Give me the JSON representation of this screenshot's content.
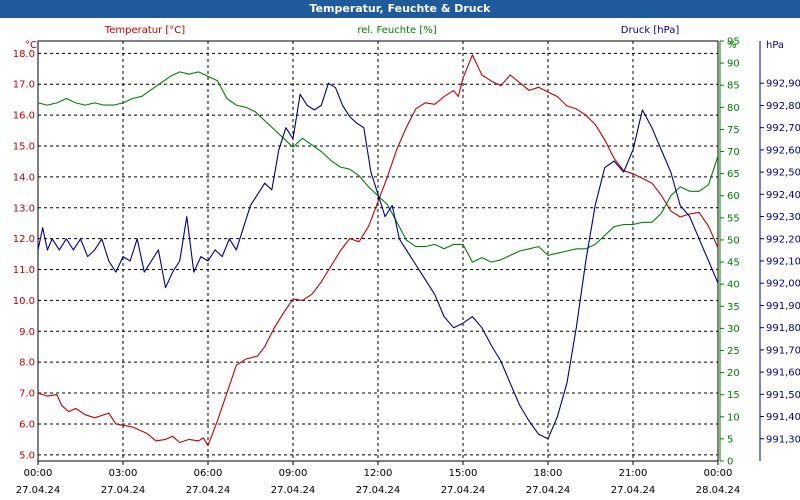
{
  "window": {
    "title": "Temperatur, Feuchte & Druck"
  },
  "chart_data": {
    "type": "line",
    "title": "Temperatur, Feuchte & Druck",
    "grid": true,
    "x_ticks": [
      {
        "time": "00:00",
        "date": "27.04.24"
      },
      {
        "time": "03:00",
        "date": "27.04.24"
      },
      {
        "time": "06:00",
        "date": "27.04.24"
      },
      {
        "time": "09:00",
        "date": "27.04.24"
      },
      {
        "time": "12:00",
        "date": "27.04.24"
      },
      {
        "time": "15:00",
        "date": "27.04.24"
      },
      {
        "time": "18:00",
        "date": "27.04.24"
      },
      {
        "time": "21:00",
        "date": "27.04.24"
      },
      {
        "time": "00:00",
        "date": "28.04.24"
      }
    ],
    "x_range": [
      "27.04.24 00:00",
      "28.04.24 00:00"
    ],
    "axes": {
      "temperature": {
        "label": "Temperatur [°C]",
        "unit": "°C",
        "range": [
          4.8,
          18.4
        ],
        "color": "#c00000",
        "ticks": [
          "5.0",
          "6.0",
          "7.0",
          "8.0",
          "9.0",
          "10.0",
          "11.0",
          "12.0",
          "13.0",
          "14.0",
          "15.0",
          "16.0",
          "17.0",
          "18.0"
        ]
      },
      "humidity": {
        "label": "rel. Feuchte [%]",
        "unit": "%",
        "range": [
          0,
          95
        ],
        "color": "#008000",
        "ticks": [
          "0",
          "5",
          "10",
          "15",
          "20",
          "25",
          "30",
          "35",
          "40",
          "45",
          "50",
          "55",
          "60",
          "65",
          "70",
          "75",
          "80",
          "85",
          "90",
          "95"
        ]
      },
      "pressure": {
        "label": "Druck [hPa]",
        "unit": "hPa",
        "range": [
          991.2,
          993.09
        ],
        "color": "#00008b",
        "ticks": [
          "991,30",
          "991,40",
          "991,50",
          "991,60",
          "991,70",
          "991,80",
          "991,90",
          "992,00",
          "992,10",
          "992,20",
          "992,30",
          "992,40",
          "992,50",
          "992,60",
          "992,70",
          "992,80",
          "992,90"
        ]
      }
    },
    "series": [
      {
        "name": "Temperatur [°C]",
        "axis": "temperature",
        "color": "#c00000",
        "points": [
          [
            "27.04.24 00:00",
            7.0
          ],
          [
            "27.04.24 00:20",
            6.9
          ],
          [
            "27.04.24 00:40",
            6.95
          ],
          [
            "27.04.24 00:50",
            6.6
          ],
          [
            "27.04.24 01:05",
            6.4
          ],
          [
            "27.04.24 01:20",
            6.5
          ],
          [
            "27.04.24 01:40",
            6.3
          ],
          [
            "27.04.24 02:00",
            6.2
          ],
          [
            "27.04.24 02:30",
            6.35
          ],
          [
            "27.04.24 02:45",
            6.0
          ],
          [
            "27.04.24 03:20",
            5.9
          ],
          [
            "27.04.24 03:50",
            5.7
          ],
          [
            "27.04.24 04:10",
            5.45
          ],
          [
            "27.04.24 04:30",
            5.5
          ],
          [
            "27.04.24 04:45",
            5.6
          ],
          [
            "27.04.24 05:00",
            5.4
          ],
          [
            "27.04.24 05:20",
            5.5
          ],
          [
            "27.04.24 05:40",
            5.45
          ],
          [
            "27.04.24 05:50",
            5.55
          ],
          [
            "27.04.24 06:00",
            5.3
          ],
          [
            "27.04.24 06:20",
            6.1
          ],
          [
            "27.04.24 06:40",
            7.0
          ],
          [
            "27.04.24 07:00",
            7.9
          ],
          [
            "27.04.24 07:20",
            8.1
          ],
          [
            "27.04.24 07:45",
            8.2
          ],
          [
            "27.04.24 08:00",
            8.5
          ],
          [
            "27.04.24 08:20",
            9.1
          ],
          [
            "27.04.24 08:40",
            9.6
          ],
          [
            "27.04.24 09:00",
            10.05
          ],
          [
            "27.04.24 09:20",
            10.0
          ],
          [
            "27.04.24 09:40",
            10.2
          ],
          [
            "27.04.24 10:00",
            10.6
          ],
          [
            "27.04.24 10:20",
            11.1
          ],
          [
            "27.04.24 10:40",
            11.6
          ],
          [
            "27.04.24 11:00",
            12.0
          ],
          [
            "27.04.24 11:20",
            11.9
          ],
          [
            "27.04.24 11:40",
            12.4
          ],
          [
            "27.04.24 12:00",
            13.2
          ],
          [
            "27.04.24 12:20",
            14.0
          ],
          [
            "27.04.24 12:40",
            14.9
          ],
          [
            "27.04.24 13:00",
            15.6
          ],
          [
            "27.04.24 13:20",
            16.2
          ],
          [
            "27.04.24 13:40",
            16.4
          ],
          [
            "27.04.24 14:00",
            16.35
          ],
          [
            "27.04.24 14:20",
            16.6
          ],
          [
            "27.04.24 14:40",
            16.8
          ],
          [
            "27.04.24 14:50",
            16.6
          ],
          [
            "27.04.24 15:00",
            17.2
          ],
          [
            "27.04.24 15:20",
            17.95
          ],
          [
            "27.04.24 15:40",
            17.3
          ],
          [
            "27.04.24 16:00",
            17.1
          ],
          [
            "27.04.24 16:20",
            16.95
          ],
          [
            "27.04.24 16:40",
            17.3
          ],
          [
            "27.04.24 17:00",
            17.05
          ],
          [
            "27.04.24 17:20",
            16.8
          ],
          [
            "27.04.24 17:40",
            16.9
          ],
          [
            "27.04.24 18:00",
            16.75
          ],
          [
            "27.04.24 18:20",
            16.6
          ],
          [
            "27.04.24 18:40",
            16.3
          ],
          [
            "27.04.24 19:00",
            16.2
          ],
          [
            "27.04.24 19:20",
            16.0
          ],
          [
            "27.04.24 19:40",
            15.7
          ],
          [
            "27.04.24 20:00",
            15.2
          ],
          [
            "27.04.24 20:20",
            14.6
          ],
          [
            "27.04.24 20:40",
            14.2
          ],
          [
            "27.04.24 21:00",
            14.1
          ],
          [
            "27.04.24 21:20",
            13.95
          ],
          [
            "27.04.24 21:40",
            13.8
          ],
          [
            "27.04.24 22:00",
            13.4
          ],
          [
            "27.04.24 22:20",
            12.9
          ],
          [
            "27.04.24 22:40",
            12.7
          ],
          [
            "27.04.24 23:00",
            12.8
          ],
          [
            "27.04.24 23:20",
            12.85
          ],
          [
            "27.04.24 23:40",
            12.4
          ],
          [
            "28.04.24 00:00",
            11.7
          ]
        ]
      },
      {
        "name": "rel. Feuchte [%]",
        "axis": "humidity",
        "color": "#008000",
        "points": [
          [
            "27.04.24 00:00",
            81
          ],
          [
            "27.04.24 00:20",
            80.5
          ],
          [
            "27.04.24 00:40",
            81
          ],
          [
            "27.04.24 01:00",
            82
          ],
          [
            "27.04.24 01:20",
            81
          ],
          [
            "27.04.24 01:40",
            80.5
          ],
          [
            "27.04.24 02:00",
            81
          ],
          [
            "27.04.24 02:20",
            80.5
          ],
          [
            "27.04.24 02:40",
            80.5
          ],
          [
            "27.04.24 03:00",
            81
          ],
          [
            "27.04.24 03:20",
            82
          ],
          [
            "27.04.24 03:40",
            82.5
          ],
          [
            "27.04.24 04:00",
            84
          ],
          [
            "27.04.24 04:20",
            85.5
          ],
          [
            "27.04.24 04:40",
            87
          ],
          [
            "27.04.24 05:00",
            88
          ],
          [
            "27.04.24 05:20",
            87.5
          ],
          [
            "27.04.24 05:40",
            88
          ],
          [
            "27.04.24 06:00",
            87
          ],
          [
            "27.04.24 06:20",
            86
          ],
          [
            "27.04.24 06:40",
            82
          ],
          [
            "27.04.24 07:00",
            80.5
          ],
          [
            "27.04.24 07:20",
            80
          ],
          [
            "27.04.24 07:40",
            79
          ],
          [
            "27.04.24 08:00",
            77
          ],
          [
            "27.04.24 08:20",
            75
          ],
          [
            "27.04.24 08:40",
            73
          ],
          [
            "27.04.24 09:00",
            71
          ],
          [
            "27.04.24 09:20",
            73
          ],
          [
            "27.04.24 09:40",
            71.5
          ],
          [
            "27.04.24 10:00",
            70
          ],
          [
            "27.04.24 10:20",
            68
          ],
          [
            "27.04.24 10:40",
            66.5
          ],
          [
            "27.04.24 11:00",
            66
          ],
          [
            "27.04.24 11:20",
            64.5
          ],
          [
            "27.04.24 11:40",
            62
          ],
          [
            "27.04.24 12:00",
            60
          ],
          [
            "27.04.24 12:20",
            58
          ],
          [
            "27.04.24 12:40",
            54
          ],
          [
            "27.04.24 13:00",
            50
          ],
          [
            "27.04.24 13:20",
            48.5
          ],
          [
            "27.04.24 13:40",
            48.5
          ],
          [
            "27.04.24 14:00",
            49
          ],
          [
            "27.04.24 14:20",
            48
          ],
          [
            "27.04.24 14:40",
            49
          ],
          [
            "27.04.24 15:00",
            49
          ],
          [
            "27.04.24 15:20",
            45
          ],
          [
            "27.04.24 15:40",
            46
          ],
          [
            "27.04.24 16:00",
            45
          ],
          [
            "27.04.24 16:20",
            45.5
          ],
          [
            "27.04.24 16:40",
            46.5
          ],
          [
            "27.04.24 17:00",
            47.5
          ],
          [
            "27.04.24 17:20",
            48
          ],
          [
            "27.04.24 17:40",
            48.5
          ],
          [
            "27.04.24 18:00",
            46.5
          ],
          [
            "27.04.24 18:20",
            47
          ],
          [
            "27.04.24 18:40",
            47.5
          ],
          [
            "27.04.24 19:00",
            48
          ],
          [
            "27.04.24 19:20",
            48
          ],
          [
            "27.04.24 19:40",
            49
          ],
          [
            "27.04.24 20:00",
            51
          ],
          [
            "27.04.24 20:20",
            53
          ],
          [
            "27.04.24 20:40",
            53.5
          ],
          [
            "27.04.24 21:00",
            53.5
          ],
          [
            "27.04.24 21:20",
            54
          ],
          [
            "27.04.24 21:40",
            54
          ],
          [
            "27.04.24 22:00",
            56
          ],
          [
            "27.04.24 22:20",
            60
          ],
          [
            "27.04.24 22:40",
            62
          ],
          [
            "27.04.24 23:00",
            61
          ],
          [
            "27.04.24 23:20",
            61
          ],
          [
            "27.04.24 23:40",
            62.5
          ],
          [
            "28.04.24 00:00",
            69
          ]
        ]
      },
      {
        "name": "Druck [hPa]",
        "axis": "pressure",
        "color": "#00008b",
        "points": [
          [
            "27.04.24 00:00",
            992.15
          ],
          [
            "27.04.24 00:10",
            992.25
          ],
          [
            "27.04.24 00:20",
            992.15
          ],
          [
            "27.04.24 00:30",
            992.2
          ],
          [
            "27.04.24 00:45",
            992.15
          ],
          [
            "27.04.24 01:00",
            992.2
          ],
          [
            "27.04.24 01:15",
            992.15
          ],
          [
            "27.04.24 01:30",
            992.2
          ],
          [
            "27.04.24 01:45",
            992.12
          ],
          [
            "27.04.24 02:00",
            992.15
          ],
          [
            "27.04.24 02:15",
            992.2
          ],
          [
            "27.04.24 02:30",
            992.1
          ],
          [
            "27.04.24 02:45",
            992.05
          ],
          [
            "27.04.24 03:00",
            992.12
          ],
          [
            "27.04.24 03:15",
            992.1
          ],
          [
            "27.04.24 03:30",
            992.2
          ],
          [
            "27.04.24 03:45",
            992.05
          ],
          [
            "27.04.24 04:00",
            992.1
          ],
          [
            "27.04.24 04:15",
            992.15
          ],
          [
            "27.04.24 04:30",
            991.98
          ],
          [
            "27.04.24 04:45",
            992.05
          ],
          [
            "27.04.24 05:00",
            992.1
          ],
          [
            "27.04.24 05:15",
            992.3
          ],
          [
            "27.04.24 05:30",
            992.05
          ],
          [
            "27.04.24 05:45",
            992.12
          ],
          [
            "27.04.24 06:00",
            992.1
          ],
          [
            "27.04.24 06:15",
            992.15
          ],
          [
            "27.04.24 06:30",
            992.12
          ],
          [
            "27.04.24 06:45",
            992.2
          ],
          [
            "27.04.24 07:00",
            992.15
          ],
          [
            "27.04.24 07:15",
            992.25
          ],
          [
            "27.04.24 07:30",
            992.35
          ],
          [
            "27.04.24 07:45",
            992.4
          ],
          [
            "27.04.24 08:00",
            992.45
          ],
          [
            "27.04.24 08:15",
            992.42
          ],
          [
            "27.04.24 08:30",
            992.6
          ],
          [
            "27.04.24 08:45",
            992.7
          ],
          [
            "27.04.24 09:00",
            992.65
          ],
          [
            "27.04.24 09:15",
            992.85
          ],
          [
            "27.04.24 09:30",
            992.8
          ],
          [
            "27.04.24 09:45",
            992.78
          ],
          [
            "27.04.24 10:00",
            992.8
          ],
          [
            "27.04.24 10:15",
            992.9
          ],
          [
            "27.04.24 10:30",
            992.88
          ],
          [
            "27.04.24 10:45",
            992.8
          ],
          [
            "27.04.24 11:00",
            992.75
          ],
          [
            "27.04.24 11:15",
            992.72
          ],
          [
            "27.04.24 11:30",
            992.7
          ],
          [
            "27.04.24 11:45",
            992.5
          ],
          [
            "27.04.24 12:00",
            992.4
          ],
          [
            "27.04.24 12:15",
            992.3
          ],
          [
            "27.04.24 12:30",
            992.35
          ],
          [
            "27.04.24 12:45",
            992.2
          ],
          [
            "27.04.24 13:00",
            992.15
          ],
          [
            "27.04.24 13:15",
            992.1
          ],
          [
            "27.04.24 13:30",
            992.05
          ],
          [
            "27.04.24 13:45",
            992.0
          ],
          [
            "27.04.24 14:00",
            991.95
          ],
          [
            "27.04.24 14:20",
            991.85
          ],
          [
            "27.04.24 14:40",
            991.8
          ],
          [
            "27.04.24 15:00",
            991.82
          ],
          [
            "27.04.24 15:20",
            991.85
          ],
          [
            "27.04.24 15:40",
            991.8
          ],
          [
            "27.04.24 16:00",
            991.72
          ],
          [
            "27.04.24 16:20",
            991.65
          ],
          [
            "27.04.24 16:40",
            991.55
          ],
          [
            "27.04.24 17:00",
            991.45
          ],
          [
            "27.04.24 17:20",
            991.38
          ],
          [
            "27.04.24 17:40",
            991.32
          ],
          [
            "27.04.24 18:00",
            991.3
          ],
          [
            "27.04.24 18:20",
            991.4
          ],
          [
            "27.04.24 18:40",
            991.55
          ],
          [
            "27.04.24 19:00",
            991.8
          ],
          [
            "27.04.24 19:20",
            992.1
          ],
          [
            "27.04.24 19:40",
            992.35
          ],
          [
            "27.04.24 20:00",
            992.52
          ],
          [
            "27.04.24 20:20",
            992.55
          ],
          [
            "27.04.24 20:40",
            992.5
          ],
          [
            "27.04.24 21:00",
            992.6
          ],
          [
            "27.04.24 21:20",
            992.78
          ],
          [
            "27.04.24 21:40",
            992.7
          ],
          [
            "27.04.24 22:00",
            992.6
          ],
          [
            "27.04.24 22:20",
            992.5
          ],
          [
            "27.04.24 22:40",
            992.35
          ],
          [
            "27.04.24 23:00",
            992.3
          ],
          [
            "27.04.24 23:20",
            992.2
          ],
          [
            "27.04.24 23:40",
            992.1
          ],
          [
            "28.04.24 00:00",
            992.0
          ]
        ]
      }
    ]
  }
}
